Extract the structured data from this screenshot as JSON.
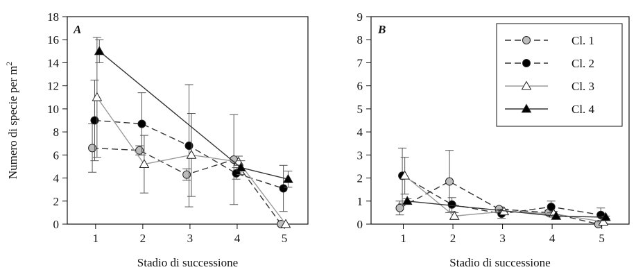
{
  "chart_data": [
    {
      "panel": "A",
      "type": "line",
      "ylabel": "Numero di specie per m",
      "ylabel_sup": "2",
      "xlabel": "Stadio di successione",
      "x_ticks": [
        1,
        2,
        3,
        4,
        5
      ],
      "ylim": [
        0,
        18
      ],
      "y_ticks": [
        0,
        2,
        4,
        6,
        8,
        10,
        12,
        14,
        16,
        18
      ],
      "series": [
        {
          "name": "Cl. 1",
          "x": [
            0.93,
            1.93,
            2.93,
            3.93,
            4.93
          ],
          "values": [
            6.6,
            6.4,
            4.3,
            5.6,
            0.0
          ],
          "err": [
            2.1,
            0.4,
            0.5,
            3.9,
            0.0
          ]
        },
        {
          "name": "Cl. 2",
          "x": [
            0.98,
            1.98,
            2.98,
            3.98,
            4.98
          ],
          "values": [
            9.0,
            8.7,
            6.8,
            4.4,
            3.1
          ],
          "err": [
            3.5,
            2.7,
            5.3,
            0.5,
            2.0
          ]
        },
        {
          "name": "Cl. 3",
          "x": [
            1.03,
            2.03,
            3.03,
            4.03,
            5.03
          ],
          "values": [
            11.0,
            5.2,
            6.0,
            5.4,
            0.0
          ],
          "err": [
            5.2,
            2.5,
            3.6,
            0.5,
            0.0
          ]
        },
        {
          "name": "Cl. 4",
          "x": [
            1.08,
            2.08,
            3.08,
            4.08,
            5.08
          ],
          "values": [
            15.0,
            null,
            null,
            4.9,
            3.9
          ],
          "err": [
            1.0,
            0,
            0,
            0.6,
            0.7
          ]
        }
      ]
    },
    {
      "panel": "B",
      "type": "line",
      "ylabel": "",
      "xlabel": "Stadio di successione",
      "x_ticks": [
        1,
        2,
        3,
        4,
        5
      ],
      "ylim": [
        0,
        9
      ],
      "y_ticks": [
        0,
        1,
        2,
        3,
        4,
        5,
        6,
        7,
        8,
        9
      ],
      "legend_position": "top-right",
      "series": [
        {
          "name": "Cl. 1",
          "x": [
            0.93,
            1.93,
            2.93,
            3.93,
            4.93
          ],
          "values": [
            0.7,
            1.85,
            0.65,
            0.5,
            0.0
          ],
          "err": [
            0.3,
            1.35,
            0.1,
            0.1,
            0.0
          ]
        },
        {
          "name": "Cl. 2",
          "x": [
            0.98,
            1.98,
            2.98,
            3.98,
            4.98
          ],
          "values": [
            2.1,
            0.85,
            0.45,
            0.75,
            0.4
          ],
          "err": [
            1.2,
            0.3,
            0.2,
            0.25,
            0.3
          ]
        },
        {
          "name": "Cl. 3",
          "x": [
            1.03,
            2.03,
            3.03,
            4.03,
            5.03
          ],
          "values": [
            2.1,
            0.35,
            0.55,
            0.45,
            0.1
          ],
          "err": [
            0.8,
            0.15,
            0.1,
            0.1,
            0.05
          ]
        },
        {
          "name": "Cl. 4",
          "x": [
            1.08,
            2.08,
            3.08,
            4.08,
            5.08
          ],
          "values": [
            1.0,
            null,
            null,
            0.35,
            0.3
          ],
          "err": [
            0.1,
            0,
            0,
            0.05,
            0.05
          ]
        }
      ]
    }
  ],
  "series_styles": [
    {
      "marker": "circle",
      "fill": "#bdbdbd",
      "dash": "9,5",
      "line": "#333333"
    },
    {
      "marker": "circle",
      "fill": "#000000",
      "dash": "9,5",
      "line": "#333333"
    },
    {
      "marker": "triangle",
      "fill": "#ffffff",
      "dash": "",
      "line": "#9a9a9a"
    },
    {
      "marker": "triangle",
      "fill": "#000000",
      "dash": "",
      "line": "#333333"
    }
  ]
}
